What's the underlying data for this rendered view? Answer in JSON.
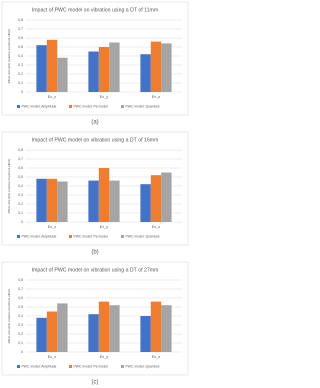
{
  "chart_data": [
    {
      "type": "bar",
      "title": "Impact of PWC model on vibration using a DT of 11mm",
      "y_label": "Effect size (ES) (relative treatment effect)",
      "categories": [
        "Ex_x",
        "Ex_y",
        "Ex_z"
      ],
      "series": [
        {
          "name": "PWC model: Amplitude",
          "color": "#4472c4",
          "values": [
            0.52,
            0.45,
            0.42
          ]
        },
        {
          "name": "PWC model: Pe model",
          "color": "#ed7d31",
          "values": [
            0.58,
            0.5,
            0.56
          ]
        },
        {
          "name": "PWC model: Quanture",
          "color": "#a5a5a5",
          "values": [
            0.38,
            0.55,
            0.54
          ]
        }
      ],
      "ylim": [
        0,
        0.8
      ],
      "yticks": [
        0,
        {
          "value": 0.1,
          "label": "0,1"
        },
        {
          "value": 0.2,
          "label": "0,2"
        },
        {
          "value": 0.3,
          "label": "0,3"
        },
        {
          "value": 0.4,
          "label": "0,4"
        },
        {
          "value": 0.5,
          "label": "0,5"
        },
        {
          "value": 0.6,
          "label": "0,6"
        },
        {
          "value": 0.7,
          "label": "0,7"
        },
        {
          "value": 0.8,
          "label": "0,8"
        }
      ],
      "grid": true,
      "legend": "bottom"
    },
    {
      "type": "bar",
      "title": "Impact of PWC model on vibration using a DT of 16mm",
      "y_label": "Effect size (ES) (relative treatment effect)",
      "categories": [
        "Ex_x",
        "Ex_y",
        "Ex_z"
      ],
      "series": [
        {
          "name": "PWC model: Amplitude",
          "color": "#4472c4",
          "values": [
            0.48,
            0.46,
            0.42
          ]
        },
        {
          "name": "PWC model: Pe model",
          "color": "#ed7d31",
          "values": [
            0.48,
            0.6,
            0.52
          ]
        },
        {
          "name": "PWC model: Quanture",
          "color": "#a5a5a5",
          "values": [
            0.45,
            0.46,
            0.55
          ]
        }
      ],
      "ylim": [
        0,
        0.8
      ],
      "yticks": [
        0,
        {
          "value": 0.1,
          "label": "0,1"
        },
        {
          "value": 0.2,
          "label": "0,2"
        },
        {
          "value": 0.3,
          "label": "0,3"
        },
        {
          "value": 0.4,
          "label": "0,4"
        },
        {
          "value": 0.5,
          "label": "0,5"
        },
        {
          "value": 0.6,
          "label": "0,6"
        },
        {
          "value": 0.7,
          "label": "0,7"
        },
        {
          "value": 0.8,
          "label": "0,8"
        }
      ],
      "grid": true,
      "legend": "bottom"
    },
    {
      "type": "bar",
      "title": "Impact of PWC model on vibration using a DT of 27mm",
      "y_label": "Effect size (ES) (relative treatment effect)",
      "categories": [
        "Ex_x",
        "Ex_y",
        "Ex_z"
      ],
      "series": [
        {
          "name": "PWC model: Amplitude",
          "color": "#4472c4",
          "values": [
            0.38,
            0.42,
            0.4
          ]
        },
        {
          "name": "PWC model: Pe model",
          "color": "#ed7d31",
          "values": [
            0.45,
            0.56,
            0.56
          ]
        },
        {
          "name": "PWC model: Quanture",
          "color": "#a5a5a5",
          "values": [
            0.54,
            0.52,
            0.52
          ]
        }
      ],
      "ylim": [
        0,
        0.8
      ],
      "yticks": [
        0,
        {
          "value": 0.1,
          "label": "0,1"
        },
        {
          "value": 0.2,
          "label": "0,2"
        },
        {
          "value": 0.3,
          "label": "0,3"
        },
        {
          "value": 0.4,
          "label": "0,4"
        },
        {
          "value": 0.5,
          "label": "0,5"
        },
        {
          "value": 0.6,
          "label": "0,6"
        },
        {
          "value": 0.7,
          "label": "0,7"
        },
        {
          "value": 0.8,
          "label": "0,8"
        }
      ],
      "grid": true,
      "legend": "bottom"
    }
  ],
  "captions": [
    "(a)",
    "(b)",
    "(c)"
  ]
}
